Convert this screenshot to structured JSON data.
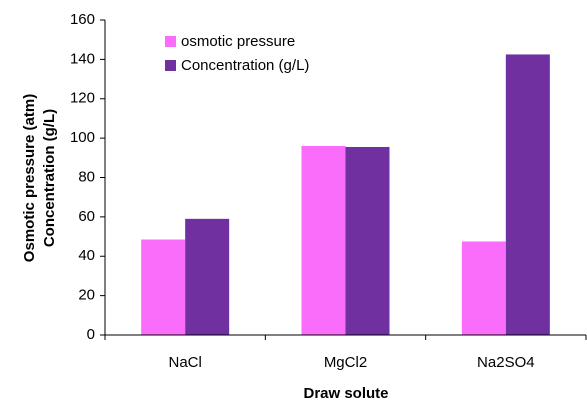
{
  "chart_data": {
    "type": "bar",
    "ylabel": [
      "Osmotic pressure (atm)",
      "Concentration (g/L)"
    ],
    "xlabel": "Draw solute",
    "categories": [
      "NaCl",
      "MgCl2",
      "Na2SO4"
    ],
    "series": [
      {
        "name": "osmotic pressure",
        "color": "#fa6cfa",
        "values": [
          48.5,
          96,
          47.5
        ]
      },
      {
        "name": "Concentration (g/L)",
        "color": "#7030a0",
        "values": [
          59,
          95.5,
          142.5
        ]
      }
    ],
    "ylim": [
      0,
      160
    ],
    "yticks": [
      0,
      20,
      40,
      60,
      80,
      100,
      120,
      140,
      160
    ],
    "grid": false,
    "legend": "upper-left"
  }
}
